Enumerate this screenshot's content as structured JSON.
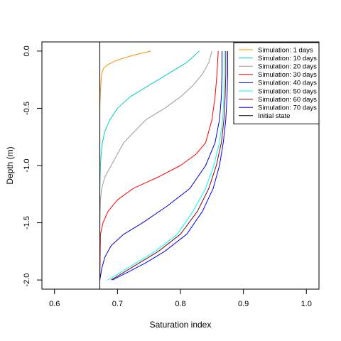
{
  "chart_data": {
    "type": "line",
    "title": "",
    "xlabel": "Saturation index",
    "ylabel": "Depth (m)",
    "xlim": [
      0.58,
      1.02
    ],
    "ylim": [
      -2.08,
      0.08
    ],
    "x_ticks": [
      0.6,
      0.7,
      0.8,
      0.9,
      1.0
    ],
    "x_tick_labels": [
      "0.6",
      "0.7",
      "0.8",
      "0.9",
      "1.0"
    ],
    "y_ticks": [
      0.0,
      -0.5,
      -1.0,
      -1.5,
      -2.0
    ],
    "y_tick_labels": [
      "0.0",
      "-0.5",
      "-1.0",
      "-1.5",
      "-2.0"
    ],
    "grid": false,
    "legend_position": "top-right",
    "series": [
      {
        "name": "Simulation: 1 days",
        "color": "#FF8C00",
        "x": [
          0.753,
          0.73,
          0.71,
          0.695,
          0.684,
          0.678,
          0.675,
          0.674,
          0.673,
          0.672,
          0.672,
          0.672,
          0.672
        ],
        "y": [
          0.0,
          -0.03,
          -0.06,
          -0.09,
          -0.12,
          -0.15,
          -0.2,
          -0.25,
          -0.35,
          -0.5,
          -1.0,
          -1.5,
          -2.0
        ]
      },
      {
        "name": "Simulation: 10 days",
        "color": "#00CDCD",
        "x": [
          0.83,
          0.81,
          0.78,
          0.75,
          0.72,
          0.7,
          0.688,
          0.68,
          0.676,
          0.674,
          0.673,
          0.672,
          0.672,
          0.672
        ],
        "y": [
          0.0,
          -0.1,
          -0.2,
          -0.3,
          -0.4,
          -0.5,
          -0.6,
          -0.7,
          -0.8,
          -0.9,
          -1.0,
          -1.2,
          -1.5,
          -2.0
        ]
      },
      {
        "name": "Simulation: 20 days",
        "color": "#999999",
        "x": [
          0.85,
          0.845,
          0.835,
          0.82,
          0.8,
          0.775,
          0.745,
          0.71,
          0.69,
          0.68,
          0.675,
          0.673,
          0.672,
          0.672
        ],
        "y": [
          0.0,
          -0.1,
          -0.2,
          -0.3,
          -0.4,
          -0.5,
          -0.6,
          -0.8,
          -1.0,
          -1.1,
          -1.2,
          -1.3,
          -1.5,
          -2.0
        ]
      },
      {
        "name": "Simulation: 30 days",
        "color": "#FF0000",
        "x": [
          0.86,
          0.858,
          0.855,
          0.85,
          0.84,
          0.825,
          0.8,
          0.765,
          0.725,
          0.7,
          0.685,
          0.677,
          0.673,
          0.672
        ],
        "y": [
          0.0,
          -0.2,
          -0.4,
          -0.6,
          -0.8,
          -0.9,
          -1.0,
          -1.1,
          -1.2,
          -1.3,
          -1.4,
          -1.5,
          -1.6,
          -2.0
        ]
      },
      {
        "name": "Simulation: 40 days",
        "color": "#0000CD",
        "x": [
          0.866,
          0.866,
          0.865,
          0.862,
          0.855,
          0.84,
          0.815,
          0.78,
          0.74,
          0.71,
          0.69,
          0.68,
          0.675,
          0.672
        ],
        "y": [
          0.0,
          -0.2,
          -0.4,
          -0.6,
          -0.8,
          -1.0,
          -1.2,
          -1.35,
          -1.5,
          -1.6,
          -1.7,
          -1.8,
          -1.9,
          -2.0
        ]
      },
      {
        "name": "Simulation: 50 days",
        "color": "#00FFFF",
        "x": [
          0.87,
          0.87,
          0.869,
          0.867,
          0.862,
          0.853,
          0.84,
          0.82,
          0.795,
          0.76,
          0.73,
          0.7,
          0.685
        ],
        "y": [
          0.0,
          -0.2,
          -0.4,
          -0.6,
          -0.8,
          -1.0,
          -1.2,
          -1.4,
          -1.6,
          -1.75,
          -1.85,
          -1.95,
          -2.0
        ]
      },
      {
        "name": "Simulation: 60 days",
        "color": "#8B0000",
        "x": [
          0.872,
          0.872,
          0.871,
          0.869,
          0.865,
          0.857,
          0.845,
          0.827,
          0.8,
          0.765,
          0.735,
          0.705,
          0.69
        ],
        "y": [
          0.0,
          -0.2,
          -0.4,
          -0.6,
          -0.8,
          -1.0,
          -1.2,
          -1.4,
          -1.6,
          -1.75,
          -1.85,
          -1.95,
          -2.0
        ]
      },
      {
        "name": "Simulation: 70 days",
        "color": "#0000FF",
        "x": [
          0.875,
          0.875,
          0.874,
          0.872,
          0.868,
          0.862,
          0.852,
          0.835,
          0.81,
          0.775,
          0.745,
          0.71,
          0.692
        ],
        "y": [
          0.0,
          -0.2,
          -0.4,
          -0.6,
          -0.8,
          -1.0,
          -1.2,
          -1.4,
          -1.6,
          -1.75,
          -1.85,
          -1.95,
          -2.0
        ]
      },
      {
        "name": "Initial state",
        "color": "#000000",
        "x": [
          0.672,
          0.672
        ],
        "y": [
          0.08,
          -2.08
        ]
      }
    ]
  }
}
